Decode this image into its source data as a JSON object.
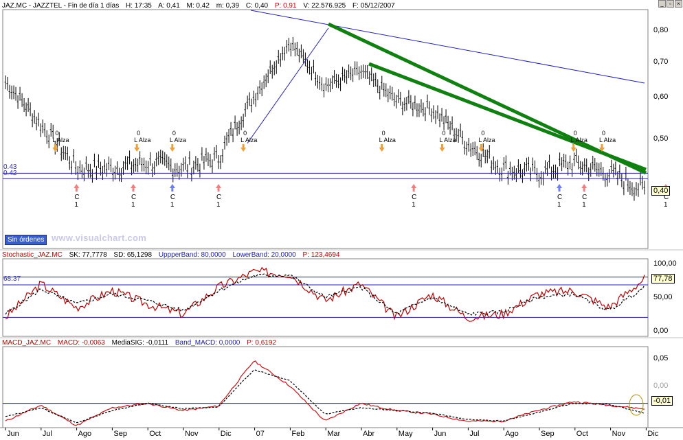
{
  "header": {
    "symbol": "JAZ.MC - JAZZTEL - Fin de día 1 días",
    "hour": "H: 17:35",
    "open": "A: 0,41",
    "high": "M: 0,42",
    "low": "m: 0,39",
    "close": "C: 0,40",
    "p": "P: 0,91",
    "volume": "V: 22.576.925",
    "date": "F: 05/12/2007"
  },
  "colors": {
    "price": "#000000",
    "trendline_thin": "#2020c0",
    "trendline_thick": "#108010",
    "signal_buy": "#f08080",
    "signal_c": "#6f7ff0",
    "signal_alza": "#f0a030",
    "stoch": "#c00000",
    "macd": "#d01010",
    "hline": "#2020c0"
  },
  "panel_price": {
    "y_ticks": [
      "0,80",
      "0,70",
      "0,60",
      "0,50"
    ],
    "last_value": "0,40",
    "hlines": [
      "0.43",
      "0.42"
    ],
    "orders_button": "Sin órdenes",
    "watermark": "www.visualchart.com",
    "signal_buy_label": "C",
    "signal_buy_sub": "1",
    "signal_sell_label": "L",
    "signal_sell_text": "Alza",
    "signal_sell_top": "0"
  },
  "panel_stoch": {
    "title": "Stochastic_JAZ.MC",
    "sk": "SK: 77,7778",
    "sd": "SD: 65,1298",
    "upper": "UppperBand: 80,0000",
    "lower": "LowerBand: 20,0000",
    "p": "P: 123,4694",
    "y_ticks": [
      "100,00",
      "50,00",
      "0,00"
    ],
    "last_value": "77,78",
    "level_label": "68.37"
  },
  "panel_macd": {
    "title": "MACD_JAZ.MC",
    "macd": "MACD: -0,0063",
    "signal": "MediaSIG: -0,0111",
    "band": "Band_MACD: 0,0000",
    "p": "P: 0,6192",
    "y_ticks": [
      "0,05",
      "0,00"
    ],
    "last_value": "-0,01"
  },
  "x_axis": [
    "Jun",
    "Jul",
    "Ago",
    "Sep",
    "Oct",
    "Nov",
    "Dic",
    "07",
    "Feb",
    "Mar",
    "Abr",
    "May",
    "Jun",
    "Jul",
    "Ago",
    "Sep",
    "Oct",
    "Nov",
    "Dic"
  ],
  "chart_data": [
    {
      "type": "line",
      "title": "JAZ.MC - JAZZTEL",
      "x": [
        "Jun",
        "Jul",
        "Ago",
        "Sep",
        "Oct",
        "Nov",
        "Dic",
        "Ene",
        "Feb",
        "Mar",
        "Abr",
        "May",
        "Jun",
        "Jul",
        "Ago",
        "Sep",
        "Oct",
        "Nov",
        "Dic"
      ],
      "series": [
        {
          "name": "JAZ.MC",
          "values": [
            0.64,
            0.53,
            0.44,
            0.44,
            0.45,
            0.44,
            0.46,
            0.6,
            0.76,
            0.63,
            0.67,
            0.59,
            0.57,
            0.49,
            0.44,
            0.43,
            0.45,
            0.43,
            0.4
          ]
        }
      ],
      "ylim": [
        0.33,
        0.86
      ],
      "hlines": [
        0.43,
        0.42
      ],
      "y_scale": "log"
    },
    {
      "type": "line",
      "title": "Stochastic_JAZ.MC",
      "x": [
        "Jun",
        "Jul",
        "Ago",
        "Sep",
        "Oct",
        "Nov",
        "Dic",
        "Ene",
        "Feb",
        "Mar",
        "Abr",
        "May",
        "Jun",
        "Jul",
        "Ago",
        "Sep",
        "Oct",
        "Nov",
        "Dic"
      ],
      "series": [
        {
          "name": "SK",
          "values": [
            20,
            70,
            35,
            60,
            40,
            25,
            65,
            88,
            85,
            45,
            70,
            20,
            55,
            20,
            25,
            55,
            60,
            35,
            78
          ]
        },
        {
          "name": "SD",
          "values": [
            25,
            62,
            40,
            55,
            45,
            30,
            60,
            82,
            83,
            50,
            65,
            25,
            50,
            25,
            28,
            50,
            55,
            30,
            65
          ]
        }
      ],
      "ylim": [
        0,
        100
      ],
      "bands": [
        80,
        20
      ]
    },
    {
      "type": "line",
      "title": "MACD_JAZ.MC",
      "x": [
        "Jun",
        "Jul",
        "Ago",
        "Sep",
        "Oct",
        "Nov",
        "Dic",
        "Ene",
        "Feb",
        "Mar",
        "Abr",
        "May",
        "Jun",
        "Jul",
        "Ago",
        "Sep",
        "Oct",
        "Nov",
        "Dic"
      ],
      "series": [
        {
          "name": "MACD",
          "values": [
            -0.02,
            -0.002,
            -0.025,
            -0.005,
            0.0,
            -0.008,
            -0.003,
            0.048,
            0.02,
            -0.02,
            0.0,
            -0.008,
            -0.012,
            -0.02,
            -0.02,
            -0.008,
            0.002,
            -0.002,
            -0.0063
          ]
        },
        {
          "name": "MediaSIG",
          "values": [
            -0.015,
            -0.005,
            -0.022,
            -0.008,
            0.0,
            -0.006,
            -0.004,
            0.038,
            0.026,
            -0.012,
            -0.005,
            -0.008,
            -0.011,
            -0.018,
            -0.02,
            -0.01,
            0.0,
            -0.001,
            -0.0111
          ]
        }
      ],
      "ylim": [
        -0.025,
        0.06
      ],
      "bands": [
        0.0
      ]
    }
  ]
}
